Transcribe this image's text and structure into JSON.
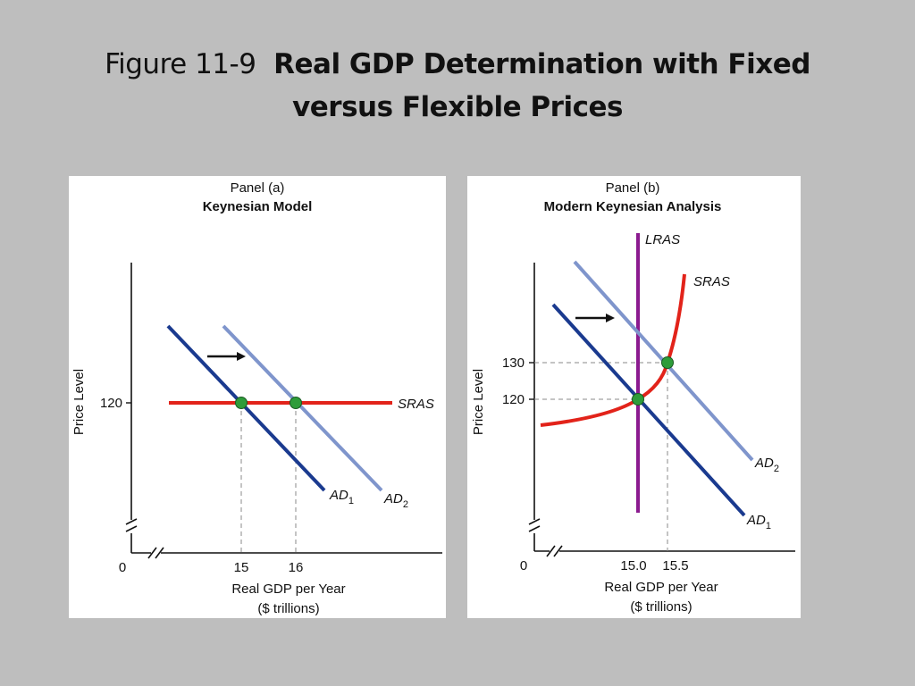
{
  "title": {
    "prefix": "Figure 11-9",
    "main_line1": "Real GDP Determination with Fixed",
    "main_line2": "versus Flexible Prices"
  },
  "colors": {
    "background": "#bebebe",
    "ad1": "#1a3a8f",
    "ad2": "#7f95cc",
    "sras": "#e2231a",
    "lras": "#8b1a8f",
    "equilibrium_point": "#2e9c3a"
  },
  "chart_data": [
    {
      "type": "line",
      "panel_label": "Panel (a)",
      "title": "Keynesian Model",
      "xlabel": "Real GDP per Year",
      "xlabel_unit": "($ trillions)",
      "ylabel": "Price Level",
      "origin_label": "0",
      "x_ticks": [
        "15",
        "16"
      ],
      "y_ticks": [
        "120"
      ],
      "shift_arrow": "AD1 to AD2 (rightward)",
      "series": [
        {
          "name": "SRAS",
          "points": [
            [
              14.0,
              120
            ],
            [
              18.8,
              120
            ]
          ]
        },
        {
          "name": "AD1",
          "points": [
            [
              13.7,
              135
            ],
            [
              16.5,
              105
            ]
          ]
        },
        {
          "name": "AD2",
          "points": [
            [
              14.7,
              135
            ],
            [
              17.5,
              105
            ]
          ]
        }
      ],
      "equilibria": [
        {
          "x": 15,
          "y": 120
        },
        {
          "x": 16,
          "y": 120
        }
      ]
    },
    {
      "type": "line",
      "panel_label": "Panel (b)",
      "title": "Modern Keynesian Analysis",
      "xlabel": "Real GDP per Year",
      "xlabel_unit": "($ trillions)",
      "ylabel": "Price Level",
      "origin_label": "0",
      "x_ticks": [
        "15.0",
        "15.5"
      ],
      "y_ticks": [
        "130",
        "120"
      ],
      "shift_arrow": "AD1 to AD2 (rightward)",
      "series": [
        {
          "name": "LRAS",
          "points": [
            [
              15.0,
              165
            ],
            [
              15.0,
              90
            ]
          ]
        },
        {
          "name": "SRAS",
          "points": [
            [
              13.6,
              114
            ],
            [
              15.0,
              120
            ],
            [
              15.5,
              130
            ],
            [
              15.75,
              155
            ]
          ]
        },
        {
          "name": "AD1",
          "points": [
            [
              13.8,
              146
            ],
            [
              17.5,
              92
            ]
          ]
        },
        {
          "name": "AD2",
          "points": [
            [
              14.2,
              153
            ],
            [
              17.5,
              103
            ]
          ]
        }
      ],
      "equilibria": [
        {
          "x": 15.0,
          "y": 120
        },
        {
          "x": 15.5,
          "y": 130
        }
      ]
    }
  ],
  "labels": {
    "a": {
      "panel": "Panel (a)",
      "title": "Keynesian Model",
      "ylabel": "Price Level",
      "y120": "120",
      "origin": "0",
      "x15": "15",
      "x16": "16",
      "xlabel": "Real GDP per Year",
      "xunit": "($ trillions)",
      "sras": "SRAS",
      "ad": "AD",
      "sub1": "1",
      "sub2": "2"
    },
    "b": {
      "panel": "Panel (b)",
      "title": "Modern Keynesian Analysis",
      "ylabel": "Price Level",
      "y130": "130",
      "y120": "120",
      "origin": "0",
      "x150": "15.0",
      "x155": "15.5",
      "xlabel": "Real GDP per Year",
      "xunit": "($ trillions)",
      "lras": "LRAS",
      "sras": "SRAS",
      "ad": "AD",
      "sub1": "1",
      "sub2": "2"
    }
  }
}
